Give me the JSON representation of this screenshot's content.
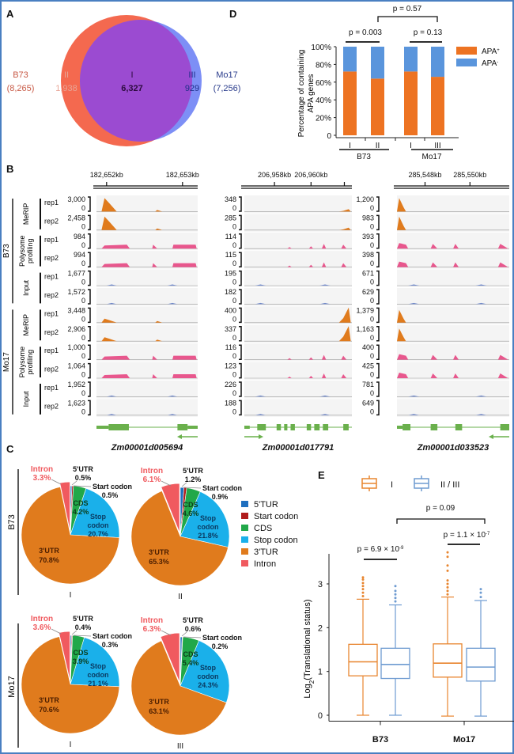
{
  "panels": {
    "A": "A",
    "B": "B",
    "C": "C",
    "D": "D",
    "E": "E"
  },
  "colors": {
    "b73": "#f4694f",
    "mo17": "#6b7ff5",
    "overlap": "#9b4bd1",
    "apa_pos": "#ed7322",
    "apa_neg": "#5a95dc",
    "merip": "#e07b1d",
    "polysome": "#e8578d",
    "input": "#6d86c9",
    "gene": "#6ab04c",
    "utr5": "#1f6fbf",
    "start": "#b01c1c",
    "cds": "#21a849",
    "stop": "#1ab0ea",
    "utr3": "#e07b1d",
    "intron": "#f05a5f",
    "box_I": "#e8852f",
    "box_II": "#6e9bd1"
  },
  "chart_data": [
    {
      "panel": "A",
      "type": "venn",
      "sets": [
        {
          "name": "B73",
          "total": "(8,265)"
        },
        {
          "name": "Mo17",
          "total": "(7,256)"
        }
      ],
      "regions": [
        {
          "label": "II",
          "value": "1,938",
          "set": "B73 only"
        },
        {
          "label": "I",
          "value": "6,327",
          "set": "overlap"
        },
        {
          "label": "III",
          "value": "929",
          "set": "Mo17 only"
        }
      ]
    },
    {
      "panel": "D",
      "type": "bar",
      "stacked": true,
      "ylabel_line1": "Percentage of containing",
      "ylabel_line2": "APA genes",
      "yticks": [
        "0",
        "20%",
        "40%",
        "60%",
        "80%",
        "100%"
      ],
      "ylim": [
        0,
        100
      ],
      "categories": [
        "I",
        "II",
        "I",
        "III"
      ],
      "groups": [
        {
          "name": "B73",
          "members": [
            0,
            1
          ]
        },
        {
          "name": "Mo17",
          "members": [
            2,
            3
          ]
        }
      ],
      "series": [
        {
          "name": "APA+",
          "values": [
            72,
            64,
            72,
            66
          ]
        },
        {
          "name": "APA-",
          "values": [
            28,
            36,
            28,
            34
          ]
        }
      ],
      "legend": [
        {
          "name": "APA",
          "sup": "+"
        },
        {
          "name": "APA",
          "sup": "-"
        }
      ],
      "annotations": [
        {
          "text": "p = 0.003",
          "span": "B73 I vs II"
        },
        {
          "text": "p = 0.13",
          "span": "Mo17 I vs III"
        },
        {
          "text": "p = 0.57",
          "span": "B73 vs Mo17"
        }
      ]
    },
    {
      "panel": "B",
      "type": "tracks",
      "row_labels": {
        "genotypes": [
          "B73",
          "Mo17"
        ],
        "assays": [
          "MeRIP",
          "Polysome profiling",
          "Input"
        ],
        "assay_lines": [
          [
            "MeRIP"
          ],
          [
            "Polysome",
            "profiling"
          ],
          [
            "Input"
          ]
        ],
        "reps": [
          "rep1",
          "rep2"
        ]
      },
      "zero": "0",
      "loci": [
        {
          "gene": "Zm00001d005694",
          "coords": [
            "182,652kb",
            "182,653kb"
          ],
          "strand": "-",
          "scales": [
            "3,000",
            "2,458",
            "984",
            "994",
            "1,677",
            "1,572",
            "3,448",
            "2,906",
            "1,000",
            "1,064",
            "1,952",
            "1,623"
          ]
        },
        {
          "gene": "Zm00001d017791",
          "coords": [
            "206,958kb",
            "206,960kb"
          ],
          "strand": "+",
          "scales": [
            "348",
            "285",
            "114",
            "115",
            "195",
            "182",
            "400",
            "337",
            "116",
            "123",
            "226",
            "188"
          ]
        },
        {
          "gene": "Zm00001d033523",
          "coords": [
            "285,548kb",
            "285,550kb"
          ],
          "strand": "-",
          "scales": [
            "1,200",
            "983",
            "393",
            "398",
            "671",
            "629",
            "1,379",
            "1,163",
            "400",
            "425",
            "781",
            "649"
          ]
        }
      ]
    },
    {
      "panel": "C",
      "type": "pie",
      "legend": [
        "5'TUR",
        "Start codon",
        "CDS",
        "Stop codon",
        "3'TUR",
        "Intron"
      ],
      "row_labels": [
        "B73",
        "Mo17"
      ],
      "pies": [
        {
          "genotype": "B73",
          "group": "I",
          "slices": [
            {
              "name": "5'UTR",
              "value": 0.5,
              "label": "0.5%"
            },
            {
              "name": "Start codon",
              "value": 0.5,
              "label": "0.5%"
            },
            {
              "name": "CDS",
              "value": 4.2,
              "label": "4.2%"
            },
            {
              "name": "Stop codon",
              "value": 20.7,
              "label": "20.7%"
            },
            {
              "name": "3'UTR",
              "value": 70.8,
              "label": "70.8%"
            },
            {
              "name": "Intron",
              "value": 3.3,
              "label": "3.3%"
            }
          ]
        },
        {
          "genotype": "B73",
          "group": "II",
          "slices": [
            {
              "name": "5'UTR",
              "value": 1.2,
              "label": "1.2%"
            },
            {
              "name": "Start codon",
              "value": 0.9,
              "label": "0.9%"
            },
            {
              "name": "CDS",
              "value": 4.6,
              "label": "4.6%"
            },
            {
              "name": "Stop codon",
              "value": 21.8,
              "label": "21.8%"
            },
            {
              "name": "3'UTR",
              "value": 65.3,
              "label": "65.3%"
            },
            {
              "name": "Intron",
              "value": 6.1,
              "label": "6.1%"
            }
          ]
        },
        {
          "genotype": "Mo17",
          "group": "I",
          "slices": [
            {
              "name": "5'UTR",
              "value": 0.4,
              "label": "0.4%"
            },
            {
              "name": "Start codon",
              "value": 0.3,
              "label": "0.3%"
            },
            {
              "name": "CDS",
              "value": 3.9,
              "label": "3.9%"
            },
            {
              "name": "Stop codon",
              "value": 21.1,
              "label": "21.1%"
            },
            {
              "name": "3'UTR",
              "value": 70.6,
              "label": "70.6%"
            },
            {
              "name": "Intron",
              "value": 3.6,
              "label": "3.6%"
            }
          ]
        },
        {
          "genotype": "Mo17",
          "group": "III",
          "slices": [
            {
              "name": "5'UTR",
              "value": 0.6,
              "label": "0.6%"
            },
            {
              "name": "Start codon",
              "value": 0.2,
              "label": "0.2%"
            },
            {
              "name": "CDS",
              "value": 5.4,
              "label": "5.4%"
            },
            {
              "name": "Stop codon",
              "value": 24.3,
              "label": "24.3%"
            },
            {
              "name": "3'UTR",
              "value": 63.1,
              "label": "63.1%"
            },
            {
              "name": "Intron",
              "value": 6.3,
              "label": "6.3%"
            }
          ]
        }
      ]
    },
    {
      "panel": "E",
      "type": "box",
      "ylabel": "Log2(Translational status)",
      "ylabel_base": "Log",
      "ylabel_sub": "2",
      "ylabel_rest": "(Translational status)",
      "yticks": [
        "0",
        "1",
        "2",
        "3"
      ],
      "ylim": [
        -0.1,
        3.8
      ],
      "categories": [
        "B73",
        "Mo17"
      ],
      "legend": [
        "I",
        "II / III"
      ],
      "boxes": [
        {
          "category": "B73",
          "group": "I",
          "min": 0,
          "q1": 0.9,
          "median": 1.22,
          "q3": 1.62,
          "max": 2.65,
          "outliers": [
            2.72,
            2.8,
            2.88,
            2.95,
            3.02,
            3.1,
            3.15
          ]
        },
        {
          "category": "B73",
          "group": "II/III",
          "min": 0,
          "q1": 0.84,
          "median": 1.16,
          "q3": 1.53,
          "max": 2.52,
          "outliers": [
            2.6,
            2.68,
            2.76,
            2.84,
            2.95
          ]
        },
        {
          "category": "Mo17",
          "group": "I",
          "min": -0.02,
          "q1": 0.87,
          "median": 1.19,
          "q3": 1.63,
          "max": 2.7,
          "outliers": [
            2.76,
            2.84,
            2.92,
            3.0,
            3.08,
            3.3,
            3.42,
            3.62,
            3.72
          ]
        },
        {
          "category": "Mo17",
          "group": "II/III",
          "min": -0.02,
          "q1": 0.78,
          "median": 1.1,
          "q3": 1.53,
          "max": 2.62,
          "outliers": [
            2.7,
            2.8,
            2.88
          ]
        }
      ],
      "annotations": [
        {
          "text": "p = 6.9 × 10",
          "exp": "-9",
          "span": "B73 I vs II"
        },
        {
          "text": "p = 1.1 × 10",
          "exp": "-7",
          "span": "Mo17 I vs III"
        },
        {
          "text": "p = 0.09",
          "span": "B73 vs Mo17"
        }
      ]
    }
  ]
}
